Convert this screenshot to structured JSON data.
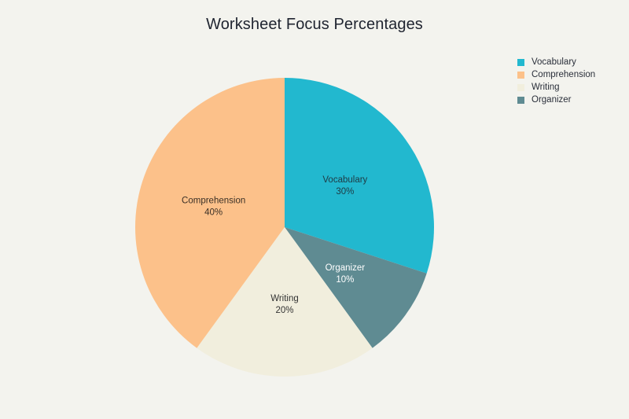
{
  "chart_data": {
    "type": "pie",
    "title": "Worksheet Focus Percentages",
    "slices": [
      {
        "label": "Vocabulary",
        "value": 30,
        "display": "30%",
        "color": "#22b8cf",
        "text_color": "#1f3a44"
      },
      {
        "label": "Organizer",
        "value": 10,
        "display": "10%",
        "color": "#5f8b92",
        "text_color": "#ffffff"
      },
      {
        "label": "Writing",
        "value": 20,
        "display": "20%",
        "color": "#f1eedd",
        "text_color": "#333333"
      },
      {
        "label": "Comprehension",
        "value": 40,
        "display": "40%",
        "color": "#fcc18a",
        "text_color": "#3a3026"
      }
    ],
    "legend": {
      "placement": "top-right",
      "entries": [
        {
          "label": "Vocabulary",
          "color": "#22b8cf"
        },
        {
          "label": "Comprehension",
          "color": "#fcc18a"
        },
        {
          "label": "Writing",
          "color": "#f1eedd"
        },
        {
          "label": "Organizer",
          "color": "#5f8b92"
        }
      ]
    },
    "start_angle": "12 o'clock",
    "direction": "clockwise"
  }
}
